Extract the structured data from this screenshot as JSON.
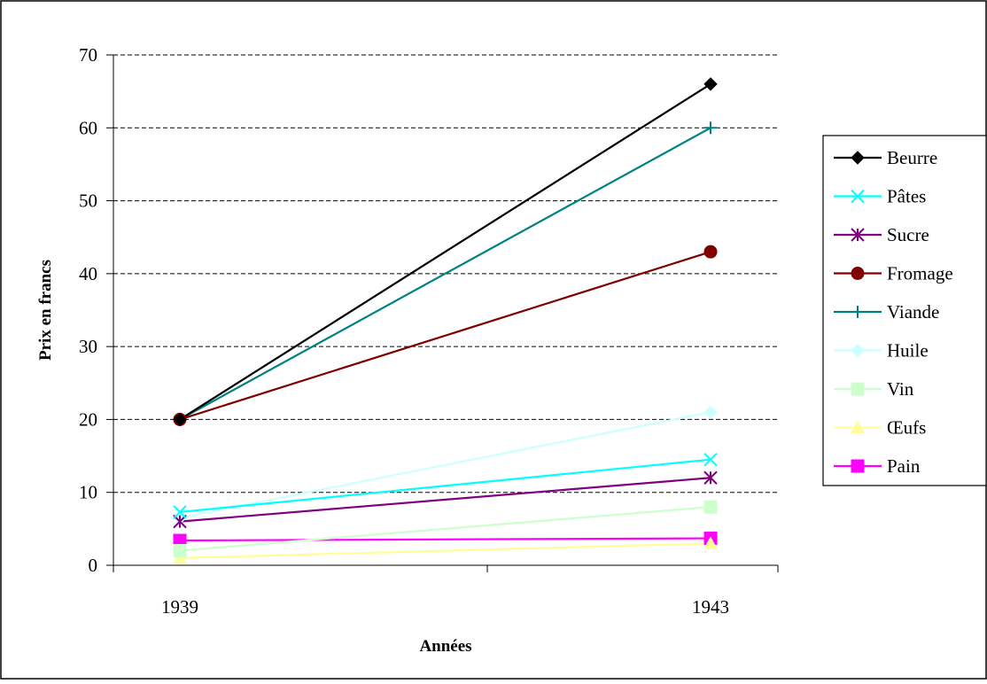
{
  "chart_data": {
    "type": "line",
    "title": "",
    "xlabel": "Années",
    "ylabel": "Prix en francs",
    "categories": [
      "1939",
      "1943"
    ],
    "ylim": [
      0,
      70
    ],
    "yticks": [
      0,
      10,
      20,
      30,
      40,
      50,
      60,
      70
    ],
    "grid": "horizontal dashed",
    "legend_position": "right",
    "series": [
      {
        "name": "Beurre",
        "values": [
          20,
          66
        ],
        "color": "#000000",
        "marker": "diamond"
      },
      {
        "name": "Pâtes",
        "values": [
          7.3,
          14.5
        ],
        "color": "#00FFFF",
        "marker": "x"
      },
      {
        "name": "Sucre",
        "values": [
          6,
          12
        ],
        "color": "#800080",
        "marker": "asterisk"
      },
      {
        "name": "Fromage",
        "values": [
          20,
          43
        ],
        "color": "#800000",
        "marker": "circle"
      },
      {
        "name": "Viande",
        "values": [
          20,
          60
        ],
        "color": "#008080",
        "marker": "plus"
      },
      {
        "name": "Huile",
        "values": [
          6.5,
          21
        ],
        "color": "#CCFFFF",
        "marker": "diamond"
      },
      {
        "name": "Vin",
        "values": [
          2,
          8
        ],
        "color": "#CCFFCC",
        "marker": "square"
      },
      {
        "name": "Œufs",
        "values": [
          1,
          3
        ],
        "color": "#FFFF99",
        "marker": "triangle"
      },
      {
        "name": "Pain",
        "values": [
          3.4,
          3.7
        ],
        "color": "#FF00FF",
        "marker": "square"
      }
    ]
  }
}
